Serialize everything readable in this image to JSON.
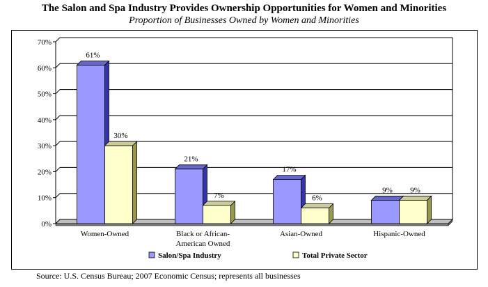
{
  "title": "The Salon and Spa Industry Provides Ownership Opportunities for Women and Minorities",
  "subtitle": "Proportion of Businesses Owned by Women and Minorities",
  "source": "Source: U.S. Census Bureau; 2007 Economic Census; represents all businesses",
  "colors": {
    "salon": "#9999ff",
    "total": "#ffffcc",
    "floor": "#808080",
    "grid": "#000000"
  },
  "chart_data": {
    "type": "bar",
    "categories": [
      [
        "Women-Owned"
      ],
      [
        "Black or African-",
        "American Owned"
      ],
      [
        "Asian-Owned"
      ],
      [
        "Hispanic-Owned"
      ]
    ],
    "series": [
      {
        "name": "Salon/Spa Industry",
        "values": [
          61,
          21,
          17,
          9
        ],
        "labels": [
          "61%",
          "21%",
          "17%",
          "9%"
        ]
      },
      {
        "name": "Total Private Sector",
        "values": [
          30,
          7,
          6,
          9
        ],
        "labels": [
          "30%",
          "7%",
          "6%",
          "9%"
        ]
      }
    ],
    "yticks": [
      "0%",
      "10%",
      "20%",
      "30%",
      "40%",
      "50%",
      "60%",
      "70%"
    ],
    "ylim": [
      0,
      70
    ],
    "grid": true,
    "legend_position": "bottom",
    "style": "3d-clustered-column"
  }
}
